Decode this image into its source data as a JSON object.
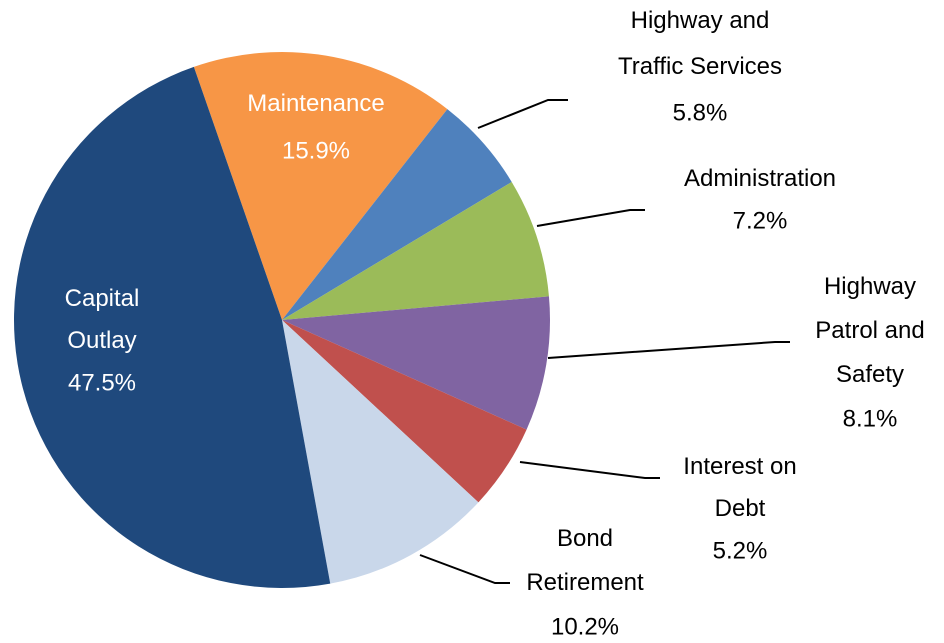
{
  "chart_data": {
    "type": "pie",
    "categories": [
      "Maintenance",
      "Highway and\nTraffic Services",
      "Administration",
      "Highway\nPatrol and\nSafety",
      "Interest on\nDebt",
      "Bond\nRetirement",
      "Capital\nOutlay"
    ],
    "values": [
      15.9,
      5.8,
      7.2,
      8.1,
      5.2,
      10.2,
      47.5
    ],
    "value_labels": [
      "15.9%",
      "5.8%",
      "7.2%",
      "8.1%",
      "5.2%",
      "10.2%",
      "47.5%"
    ],
    "colors": [
      "#f79646",
      "#4f81bd",
      "#9bbb59",
      "#8064a2",
      "#c0504d",
      "#c9d7ea",
      "#1f497d"
    ]
  }
}
